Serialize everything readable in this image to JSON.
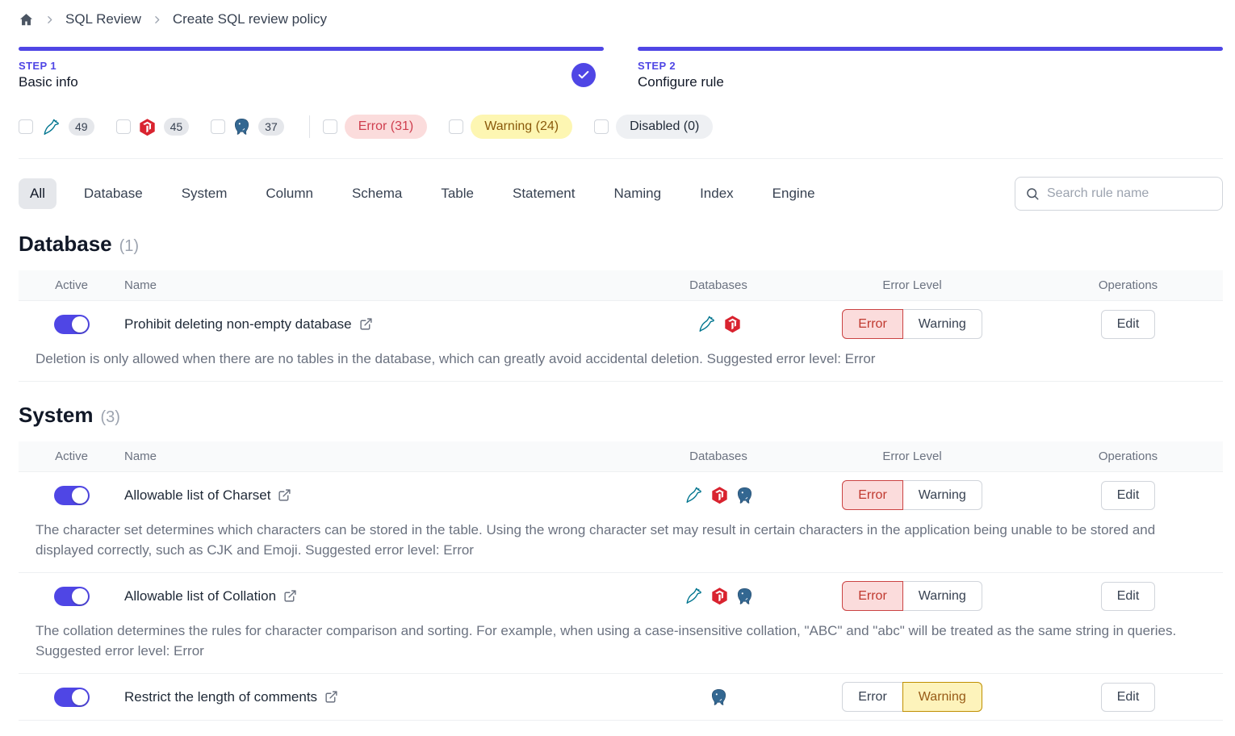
{
  "breadcrumb": {
    "items": [
      "SQL Review",
      "Create SQL review policy"
    ]
  },
  "steps": [
    {
      "label": "STEP 1",
      "title": "Basic info",
      "completed": true
    },
    {
      "label": "STEP 2",
      "title": "Configure rule",
      "completed": false
    }
  ],
  "filters": {
    "engines": [
      {
        "engine": "mysql",
        "count": "49"
      },
      {
        "engine": "tidb",
        "count": "45"
      },
      {
        "engine": "postgres",
        "count": "37"
      }
    ],
    "levels": [
      {
        "label": "Error (31)",
        "type": "error"
      },
      {
        "label": "Warning (24)",
        "type": "warning"
      },
      {
        "label": "Disabled (0)",
        "type": "disabled"
      }
    ]
  },
  "tabs": [
    "All",
    "Database",
    "System",
    "Column",
    "Schema",
    "Table",
    "Statement",
    "Naming",
    "Index",
    "Engine"
  ],
  "active_tab": "All",
  "search": {
    "placeholder": "Search rule name"
  },
  "table": {
    "headers": [
      "Active",
      "Name",
      "Databases",
      "Error Level",
      "Operations"
    ],
    "level_options": [
      "Error",
      "Warning"
    ],
    "edit_label": "Edit"
  },
  "sections": [
    {
      "title": "Database",
      "count": "(1)",
      "rules": [
        {
          "name": "Prohibit deleting non-empty database",
          "active": true,
          "engines": [
            "mysql",
            "tidb"
          ],
          "level": "Error",
          "description": "Deletion is only allowed when there are no tables in the database, which can greatly avoid accidental deletion. Suggested error level: Error"
        }
      ]
    },
    {
      "title": "System",
      "count": "(3)",
      "rules": [
        {
          "name": "Allowable list of Charset",
          "active": true,
          "engines": [
            "mysql",
            "tidb",
            "postgres"
          ],
          "level": "Error",
          "description": "The character set determines which characters can be stored in the table. Using the wrong character set may result in certain characters in the application being unable to be stored and displayed correctly, such as CJK and Emoji. Suggested error level: Error"
        },
        {
          "name": "Allowable list of Collation",
          "active": true,
          "engines": [
            "mysql",
            "tidb",
            "postgres"
          ],
          "level": "Error",
          "description": "The collation determines the rules for character comparison and sorting. For example, when using a case-insensitive collation, \"ABC\" and \"abc\" will be treated as the same string in queries. Suggested error level: Error"
        },
        {
          "name": "Restrict the length of comments",
          "active": true,
          "engines": [
            "postgres"
          ],
          "level": "Warning",
          "description": ""
        }
      ]
    }
  ],
  "colors": {
    "accent": "#4f46e5",
    "error_text": "#c0392f",
    "error_bg": "#fbdcdc",
    "warning_text": "#975a16",
    "warning_bg": "#fdf3bb",
    "mysql": "#00758f",
    "tidb": "#d9232f",
    "postgres": "#336791"
  }
}
